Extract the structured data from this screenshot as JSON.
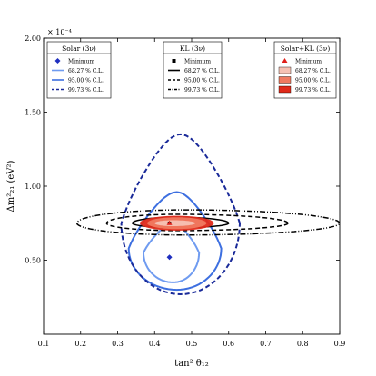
{
  "chart_data": {
    "type": "contour",
    "xlabel": "tan² θ₁₂",
    "ylabel": "Δm²₂₁ (eV²)",
    "xlim": [
      0.1,
      0.9
    ],
    "ylim": [
      0.0,
      2.0
    ],
    "y_scale_factor": "× 10⁻⁴",
    "x_ticks": [
      "0.1",
      "0.2",
      "0.3",
      "0.4",
      "0.5",
      "0.6",
      "0.7",
      "0.8",
      "0.9"
    ],
    "y_ticks": [
      {
        "v": 0.5,
        "label": "0.50"
      },
      {
        "v": 1.0,
        "label": "1.00"
      },
      {
        "v": 1.5,
        "label": "1.50"
      },
      {
        "v": 2.0,
        "label": "2.00"
      }
    ],
    "grid": false,
    "legends": [
      {
        "title": "Solar (3ν)",
        "position": "top-left",
        "entries": [
          {
            "label": "Minimum",
            "marker": "diamond",
            "color": "#1f2fbf"
          },
          {
            "label": "68.27 % C.L.",
            "line": "solid",
            "color": "#6f9bf0"
          },
          {
            "label": "95.00 % C.L.",
            "line": "solid",
            "color": "#3d6fe0"
          },
          {
            "label": "99.73 % C.L.",
            "line": "dashed",
            "color": "#1a2a99"
          }
        ]
      },
      {
        "title": "KL (3ν)",
        "position": "top-center",
        "entries": [
          {
            "label": "Minimum",
            "marker": "square",
            "color": "#000000"
          },
          {
            "label": "68.27 % C.L.",
            "line": "solid",
            "color": "#000000"
          },
          {
            "label": "95.00 % C.L.",
            "line": "dashed",
            "color": "#000000"
          },
          {
            "label": "99.73 % C.L.",
            "line": "dashdot",
            "color": "#000000"
          }
        ]
      },
      {
        "title": "Solar+KL (3ν)",
        "position": "top-right",
        "entries": [
          {
            "label": "Minimum",
            "marker": "triangle",
            "color": "#e0201a"
          },
          {
            "label": "68.27 % C.L.",
            "fill": "#f6c2b4"
          },
          {
            "label": "95.00 % C.L.",
            "fill": "#f07a60"
          },
          {
            "label": "99.73 % C.L.",
            "fill": "#e02a1a"
          }
        ]
      }
    ],
    "minima": [
      {
        "series": "Solar",
        "x": 0.44,
        "y": 0.52
      },
      {
        "series": "KL",
        "x": 0.44,
        "y": 0.75
      },
      {
        "series": "Solar+KL",
        "x": 0.44,
        "y": 0.75
      }
    ],
    "contours": [
      {
        "series": "Solar",
        "cl": "68.27",
        "center": [
          0.45,
          0.55
        ],
        "approx_extent_x": [
          0.37,
          0.52
        ],
        "approx_extent_y": [
          0.35,
          0.75
        ],
        "color": "#6f9bf0",
        "style": "solid"
      },
      {
        "series": "Solar",
        "cl": "95.00",
        "center": [
          0.46,
          0.58
        ],
        "approx_extent_x": [
          0.33,
          0.58
        ],
        "approx_extent_y": [
          0.3,
          0.96
        ],
        "color": "#3d6fe0",
        "style": "solid"
      },
      {
        "series": "Solar",
        "cl": "99.73",
        "center": [
          0.47,
          0.75
        ],
        "approx_extent_x": [
          0.31,
          0.63
        ],
        "approx_extent_y": [
          0.27,
          1.35
        ],
        "color": "#1a2a99",
        "style": "dashed"
      },
      {
        "series": "KL",
        "cl": "68.27",
        "center": [
          0.46,
          0.75
        ],
        "approx_extent_x": [
          0.34,
          0.6
        ],
        "approx_extent_y": [
          0.72,
          0.79
        ],
        "color": "#000000",
        "style": "solid"
      },
      {
        "series": "KL",
        "cl": "95.00",
        "center": [
          0.46,
          0.75
        ],
        "approx_extent_x": [
          0.27,
          0.76
        ],
        "approx_extent_y": [
          0.7,
          0.81
        ],
        "color": "#000000",
        "style": "dashed"
      },
      {
        "series": "KL",
        "cl": "99.73",
        "center": [
          0.48,
          0.75
        ],
        "approx_extent_x": [
          0.19,
          0.9
        ],
        "approx_extent_y": [
          0.67,
          0.84
        ],
        "color": "#000000",
        "style": "dashdot"
      },
      {
        "series": "Solar+KL",
        "cl": "99.73",
        "center": [
          0.46,
          0.75
        ],
        "approx_extent_x": [
          0.36,
          0.56
        ],
        "approx_extent_y": [
          0.7,
          0.8
        ],
        "fill": "#e02a1a"
      },
      {
        "series": "Solar+KL",
        "cl": "95.00",
        "center": [
          0.46,
          0.75
        ],
        "approx_extent_x": [
          0.38,
          0.54
        ],
        "approx_extent_y": [
          0.71,
          0.79
        ],
        "fill": "#f07a60"
      },
      {
        "series": "Solar+KL",
        "cl": "68.27",
        "center": [
          0.45,
          0.75
        ],
        "approx_extent_x": [
          0.4,
          0.51
        ],
        "approx_extent_y": [
          0.73,
          0.77
        ],
        "fill": "#f6c2b4"
      }
    ]
  }
}
